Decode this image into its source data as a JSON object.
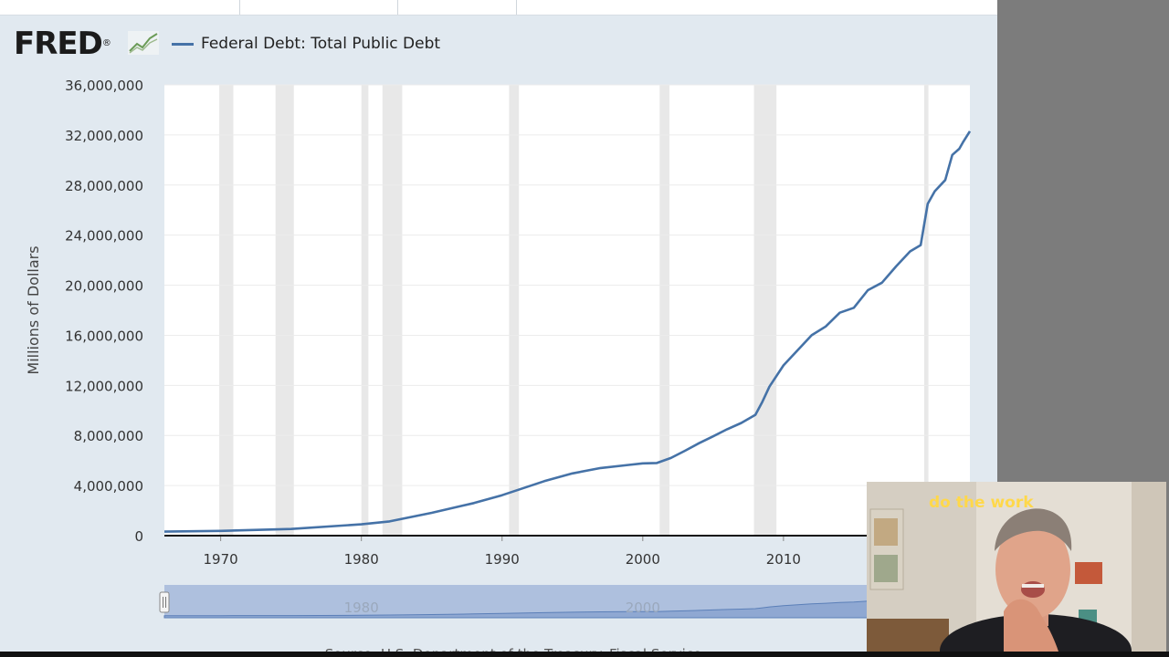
{
  "legend": {
    "label": "Federal Debt: Total Public Debt",
    "color": "#4572a7"
  },
  "chart_data": {
    "type": "line",
    "title": "Federal Debt: Total Public Debt",
    "ylabel": "Millions of Dollars",
    "xlabel": "",
    "ylim": [
      0,
      36000000
    ],
    "xlim": [
      1966,
      2023.25
    ],
    "y_ticks": [
      "0",
      "4,000,000",
      "8,000,000",
      "12,000,000",
      "16,000,000",
      "20,000,000",
      "24,000,000",
      "28,000,000",
      "32,000,000",
      "36,000,000"
    ],
    "x_ticks": [
      "1970",
      "1980",
      "1990",
      "2000",
      "2010"
    ],
    "grid": true,
    "legend_position": "top-left",
    "series": [
      {
        "name": "Federal Debt: Total Public Debt",
        "color": "#4572a7",
        "x": [
          1966,
          1970,
          1975,
          1980,
          1982,
          1985,
          1988,
          1990,
          1993,
          1995,
          1997,
          1999,
          2000,
          2001,
          2002,
          2003,
          2004,
          2005,
          2006,
          2007,
          2008,
          2008.5,
          2009,
          2010,
          2011,
          2012,
          2013,
          2014,
          2015,
          2016,
          2017,
          2018,
          2019,
          2019.75,
          2020.25,
          2020.75,
          2021.5,
          2022,
          2022.5,
          2022.75,
          2023.25
        ],
        "y": [
          320000,
          380000,
          530000,
          900000,
          1140000,
          1820000,
          2600000,
          3230000,
          4350000,
          4970000,
          5400000,
          5650000,
          5770000,
          5800000,
          6200000,
          6780000,
          7380000,
          7930000,
          8500000,
          9000000,
          9650000,
          10700000,
          11900000,
          13600000,
          14800000,
          16000000,
          16700000,
          17800000,
          18200000,
          19600000,
          20200000,
          21500000,
          22700000,
          23200000,
          26500000,
          27500000,
          28400000,
          30400000,
          30900000,
          31400000,
          32300000
        ]
      }
    ],
    "recessions": [
      [
        1969.9,
        1970.9
      ],
      [
        1973.9,
        1975.2
      ],
      [
        1980.0,
        1980.5
      ],
      [
        1981.5,
        1982.9
      ],
      [
        1990.5,
        1991.2
      ],
      [
        2001.2,
        2001.9
      ],
      [
        2007.9,
        2009.5
      ],
      [
        2020.0,
        2020.3
      ]
    ]
  },
  "range_selector": {
    "tick_labels": [
      "1980",
      "2000"
    ],
    "tick_years": [
      1980,
      2000
    ],
    "selected_range": [
      1966,
      2023.25
    ]
  },
  "source": "Source: U.S. Department of the Treasury. Fiscal Service",
  "webcam": {
    "sign_text": "do the work"
  }
}
